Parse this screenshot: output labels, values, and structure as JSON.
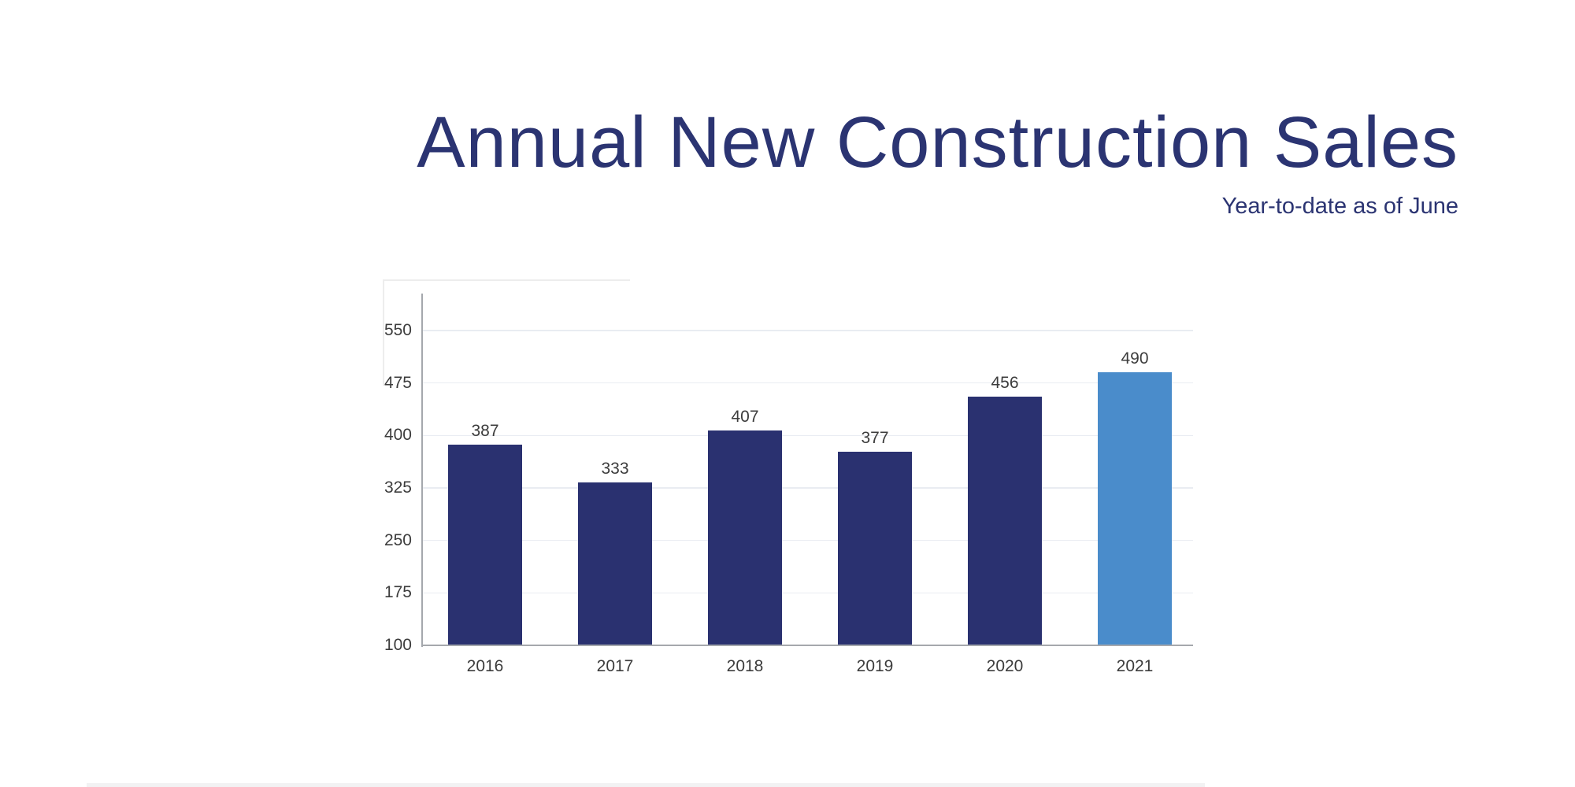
{
  "header": {
    "title": "Annual New Construction Sales",
    "subtitle": "Year-to-date as of June"
  },
  "chart_data": {
    "type": "bar",
    "title": "Annual New Construction Sales",
    "subtitle": "Year-to-date as of June",
    "categories": [
      "2016",
      "2017",
      "2018",
      "2019",
      "2020",
      "2021"
    ],
    "values": [
      387,
      333,
      407,
      377,
      456,
      490
    ],
    "xlabel": "",
    "ylabel": "",
    "ylim": [
      100,
      550
    ],
    "yticks": [
      100,
      175,
      250,
      325,
      400,
      475,
      550
    ],
    "grid": true,
    "legend": false,
    "value_labels": true,
    "highlight_index": 5
  },
  "colors": {
    "title_navy": "#2b3472",
    "bar_navy": "#2a3170",
    "bar_highlight_blue": "#4a8ccb",
    "gridline": "#e9ecf2",
    "axis_line": "#a5a8ad",
    "label_text": "#3c3c3c"
  }
}
